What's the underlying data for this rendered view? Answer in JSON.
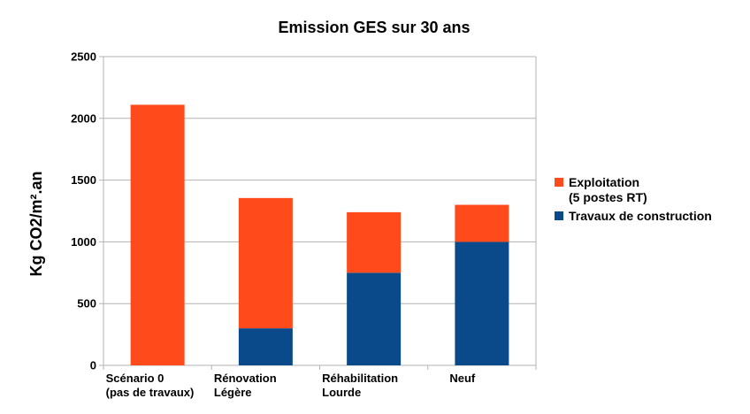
{
  "chart_data": {
    "type": "bar",
    "stacked": true,
    "title": "Emission GES sur 30 ans",
    "xlabel": "",
    "ylabel": "Kg CO2/m².an",
    "ylim": [
      0,
      2500
    ],
    "yticks": [
      0,
      500,
      1000,
      1500,
      2000,
      2500
    ],
    "grid": true,
    "legend_position": "right",
    "categories": [
      [
        "Scénario 0",
        "(pas de travaux)"
      ],
      [
        "Rénovation",
        "Légère"
      ],
      [
        "Réhabilitation",
        "Lourde"
      ],
      [
        "Neuf"
      ]
    ],
    "series": [
      {
        "name": "Travaux de construction",
        "color": "#0b4a8a",
        "values": [
          0,
          300,
          750,
          1000
        ]
      },
      {
        "name": "Exploitation (5 postes RT)",
        "legend_lines": [
          "Exploitation",
          "(5 postes RT)"
        ],
        "color": "#ff4a1c",
        "values": [
          2110,
          1055,
          490,
          300
        ]
      }
    ]
  }
}
